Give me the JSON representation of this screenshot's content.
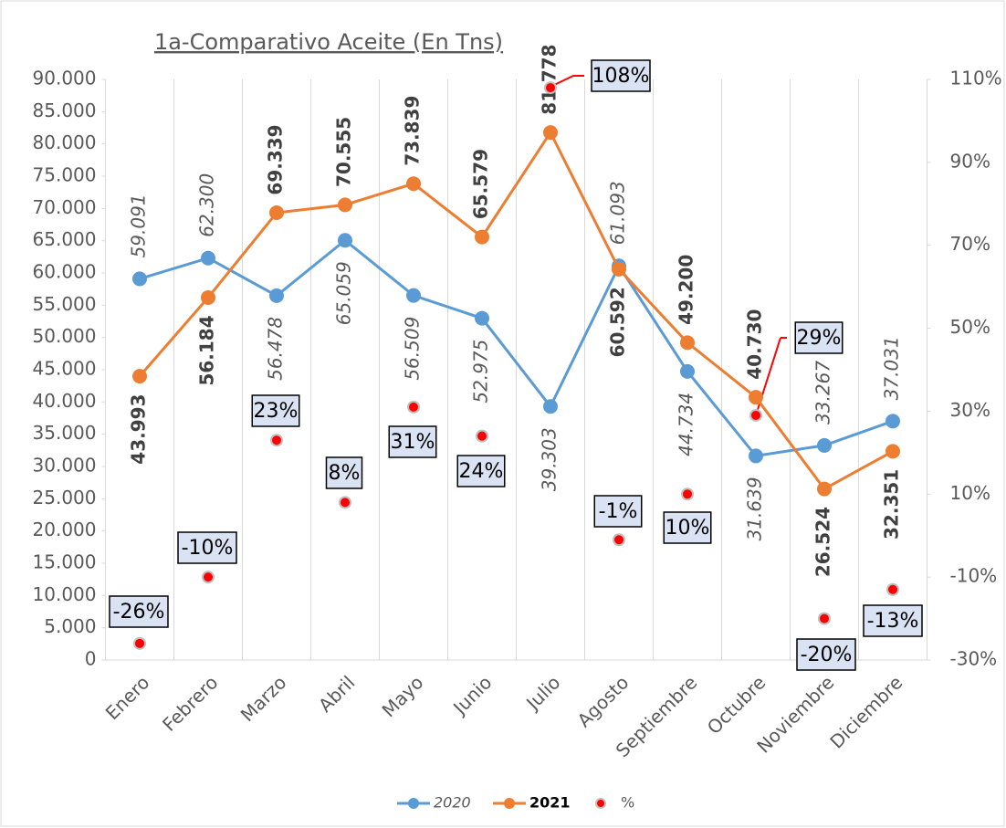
{
  "chart_data": {
    "type": "line",
    "title": "1a-Comparativo Aceite (En Tns)",
    "categories": [
      "Enero",
      "Febrero",
      "Marzo",
      "Abril",
      "Mayo",
      "Junio",
      "Julio",
      "Agosto",
      "Septiembre",
      "Octubre",
      "Noviembre",
      "Diciembre"
    ],
    "series": [
      {
        "name": "2020",
        "color": "#5b9bd5",
        "values": [
          59091,
          62300,
          56478,
          65059,
          56509,
          52975,
          39303,
          61093,
          44734,
          31639,
          33267,
          37031
        ],
        "value_labels": [
          "59.091",
          "62.300",
          "56.478",
          "65.059",
          "56.509",
          "52.975",
          "39.303",
          "61.093",
          "44.734",
          "31.639",
          "33.267",
          "37.031"
        ]
      },
      {
        "name": "2021",
        "color": "#ed7d31",
        "values": [
          43993,
          56184,
          69339,
          70555,
          73839,
          65579,
          81778,
          60592,
          49200,
          40730,
          26524,
          32351
        ],
        "value_labels": [
          "43.993",
          "56.184",
          "69.339",
          "70.555",
          "73.839",
          "65.579",
          "81.778",
          "60.592",
          "49.200",
          "40.730",
          "26.524",
          "32.351"
        ]
      },
      {
        "name": "%",
        "color": "#ff0000",
        "axis": "y2",
        "mode": "markers",
        "values": [
          -26,
          -10,
          23,
          8,
          31,
          24,
          108,
          -1,
          10,
          29,
          -20,
          -13
        ],
        "value_labels": [
          "-26%",
          "-10%",
          "23%",
          "8%",
          "31%",
          "24%",
          "108%",
          "-1%",
          "10%",
          "29%",
          "-20%",
          "-13%"
        ]
      }
    ],
    "ylim": [
      0,
      90000
    ],
    "yticks": [
      0,
      {
        "value": 5000,
        "label": "5.000"
      },
      {
        "value": 10000,
        "label": "10.000"
      },
      {
        "value": 15000,
        "label": "15.000"
      },
      {
        "value": 20000,
        "label": "20.000"
      },
      {
        "value": 25000,
        "label": "25.000"
      },
      {
        "value": 30000,
        "label": "30.000"
      },
      {
        "value": 35000,
        "label": "35.000"
      },
      {
        "value": 40000,
        "label": "40.000"
      },
      {
        "value": 45000,
        "label": "45.000"
      },
      {
        "value": 50000,
        "label": "50.000"
      },
      {
        "value": 55000,
        "label": "55.000"
      },
      {
        "value": 60000,
        "label": "60.000"
      },
      {
        "value": 65000,
        "label": "65.000"
      },
      {
        "value": 70000,
        "label": "70.000"
      },
      {
        "value": 75000,
        "label": "75.000"
      },
      {
        "value": 80000,
        "label": "80.000"
      },
      {
        "value": 85000,
        "label": "85.000"
      },
      {
        "value": 90000,
        "label": "90.000"
      }
    ],
    "y2lim": [
      -30,
      110
    ],
    "y2ticks": [
      {
        "value": -30,
        "label": "-30%"
      },
      {
        "value": -10,
        "label": "-10%"
      },
      {
        "value": 10,
        "label": "10%"
      },
      {
        "value": 30,
        "label": "30%"
      },
      {
        "value": 50,
        "label": "50%"
      },
      {
        "value": 70,
        "label": "70%"
      },
      {
        "value": 90,
        "label": "90%"
      },
      {
        "value": 110,
        "label": "110%"
      }
    ],
    "legend": "bottom"
  }
}
